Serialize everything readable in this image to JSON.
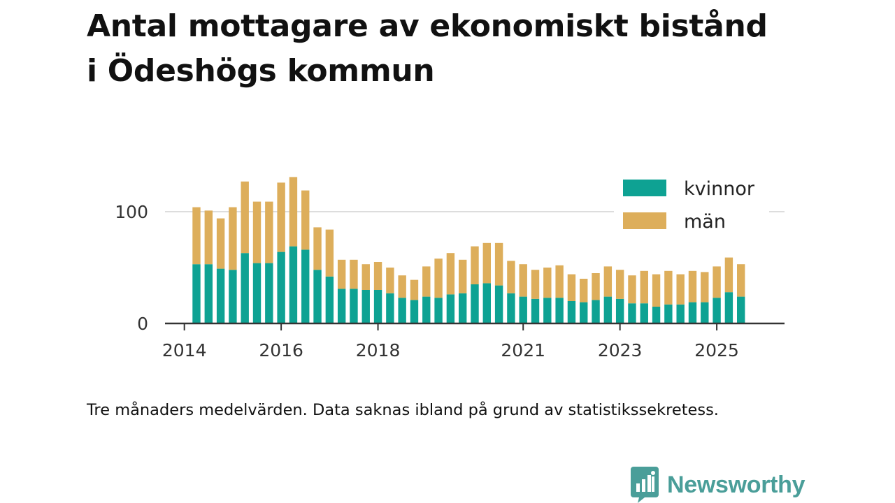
{
  "title_line1": "Antal mottagare av ekonomiskt bistånd",
  "title_line2": "i Ödeshögs kommun",
  "caption": "Tre månaders medelvärden. Data saknas ibland på grund av statistikssekretess.",
  "brand": {
    "name": "Newsworthy",
    "color": "#4a9e99"
  },
  "colors": {
    "kvinnor": "#0ea293",
    "man": "#ddae5b",
    "grid": "#dddddd",
    "axis": "#333333"
  },
  "chart_data": {
    "type": "bar",
    "stacked": true,
    "title": "Antal mottagare av ekonomiskt bistånd i Ödeshögs kommun",
    "xlabel": "",
    "ylabel": "",
    "ylim": [
      0,
      140
    ],
    "yticks": [
      0,
      100
    ],
    "x_range": [
      2013.6,
      2026.4
    ],
    "xticks": [
      {
        "value": 2014,
        "label": "2014"
      },
      {
        "value": 2016,
        "label": "2016"
      },
      {
        "value": 2018,
        "label": "2018"
      },
      {
        "value": 2021,
        "label": "2021"
      },
      {
        "value": 2023,
        "label": "2023"
      },
      {
        "value": 2025,
        "label": "2025"
      }
    ],
    "legend_position": "top-right",
    "x": [
      2014.25,
      2014.5,
      2014.75,
      2015.0,
      2015.25,
      2015.5,
      2015.75,
      2016.0,
      2016.25,
      2016.5,
      2016.75,
      2017.0,
      2017.25,
      2017.5,
      2017.75,
      2018.0,
      2018.25,
      2018.5,
      2018.75,
      2019.0,
      2019.25,
      2019.5,
      2019.75,
      2020.0,
      2020.25,
      2020.5,
      2020.75,
      2021.0,
      2021.25,
      2021.5,
      2021.75,
      2022.0,
      2022.25,
      2022.5,
      2022.75,
      2023.0,
      2023.25,
      2023.5,
      2023.75,
      2024.0,
      2024.25,
      2024.5,
      2024.75,
      2025.0,
      2025.25,
      2025.5
    ],
    "series": [
      {
        "name": "kvinnor",
        "values": [
          53,
          53,
          49,
          48,
          63,
          54,
          54,
          64,
          69,
          66,
          48,
          42,
          31,
          31,
          30,
          30,
          27,
          23,
          21,
          24,
          23,
          26,
          27,
          35,
          36,
          34,
          27,
          24,
          22,
          23,
          23,
          20,
          19,
          21,
          24,
          22,
          18,
          18,
          15,
          17,
          17,
          19,
          19,
          23,
          28,
          24
        ]
      },
      {
        "name": "män",
        "values": [
          51,
          48,
          45,
          56,
          64,
          55,
          55,
          62,
          62,
          53,
          38,
          42,
          26,
          26,
          23,
          25,
          23,
          20,
          18,
          27,
          35,
          37,
          30,
          34,
          36,
          38,
          29,
          29,
          26,
          27,
          29,
          24,
          21,
          24,
          27,
          26,
          25,
          29,
          29,
          30,
          27,
          28,
          27,
          28,
          31,
          29
        ]
      }
    ]
  }
}
